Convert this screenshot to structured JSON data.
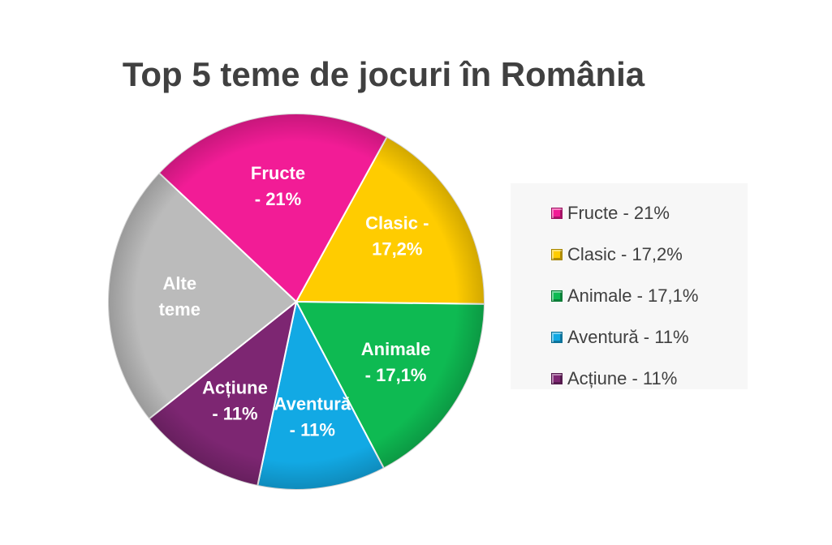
{
  "chart_data": {
    "type": "pie",
    "title": "Top 5 teme de jocuri în România",
    "slices": [
      {
        "name": "Clasic",
        "value": 17.2,
        "label_lines": [
          "Clasic -",
          "17,2%"
        ],
        "color": "#FFCC00"
      },
      {
        "name": "Animale",
        "value": 17.1,
        "label_lines": [
          "Animale",
          "- 17,1%"
        ],
        "color": "#0EBA52"
      },
      {
        "name": "Aventură",
        "value": 11,
        "label_lines": [
          "Aventură",
          "- 11%"
        ],
        "color": "#12A9E4"
      },
      {
        "name": "Acțiune",
        "value": 11,
        "label_lines": [
          "Acțiune",
          "- 11%"
        ],
        "color": "#7D2672"
      },
      {
        "name": "Alte teme",
        "value": 22.7,
        "label_lines": [
          "Alte",
          "teme"
        ],
        "color": "#BBBBBB"
      },
      {
        "name": "Fructe",
        "value": 21,
        "label_lines": [
          "Fructe",
          "- 21%"
        ],
        "color": "#F21C96"
      }
    ],
    "legend": {
      "position": "right",
      "items": [
        {
          "label": "Fructe - 21%",
          "color": "#F21C96"
        },
        {
          "label": "Clasic - 17,2%",
          "color": "#FFCC00"
        },
        {
          "label": "Animale - 17,1%",
          "color": "#0EBA52"
        },
        {
          "label": "Aventură - 11%",
          "color": "#12A9E4"
        },
        {
          "label": "Acțiune - 11%",
          "color": "#7D2672"
        }
      ]
    }
  }
}
